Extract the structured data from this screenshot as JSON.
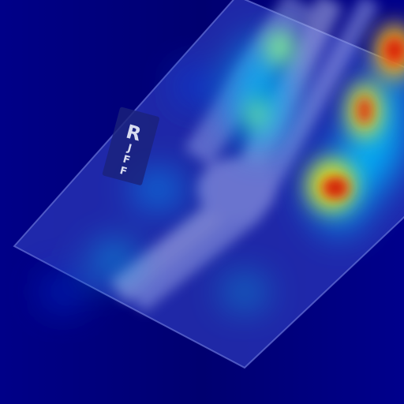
{
  "marker": {
    "side": "R",
    "initials": [
      "J",
      "F",
      "F"
    ]
  }
}
